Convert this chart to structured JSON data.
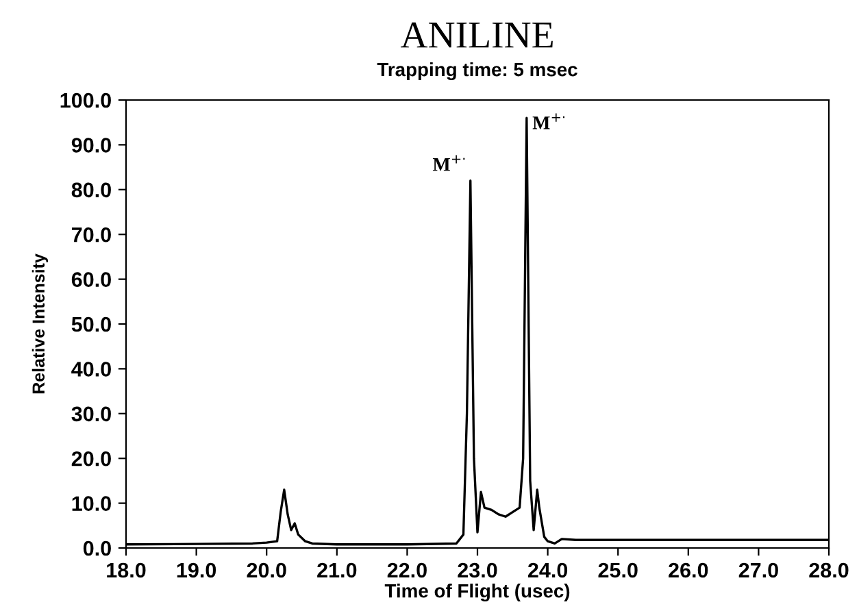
{
  "chart_data": {
    "type": "line",
    "title": "ANILINE",
    "subtitle": "Trapping time: 5 msec",
    "xlabel": "Time of Flight (usec)",
    "ylabel": "Relative Intensity",
    "x": [
      18.0,
      19.0,
      19.8,
      20.0,
      20.15,
      20.2,
      20.25,
      20.3,
      20.35,
      20.4,
      20.45,
      20.55,
      20.65,
      21.0,
      22.0,
      22.7,
      22.8,
      22.85,
      22.9,
      22.95,
      23.0,
      23.05,
      23.1,
      23.2,
      23.3,
      23.4,
      23.5,
      23.6,
      23.65,
      23.7,
      23.75,
      23.8,
      23.85,
      23.88,
      23.95,
      24.0,
      24.1,
      24.2,
      24.4,
      25.0,
      26.0,
      27.0,
      28.0
    ],
    "series": [
      {
        "color": "#000000",
        "values": [
          0.8,
          0.9,
          1.0,
          1.2,
          1.5,
          8.0,
          13.0,
          7.5,
          4.0,
          5.5,
          3.0,
          1.5,
          1.0,
          0.8,
          0.8,
          1.0,
          3.0,
          30.0,
          82.0,
          20.0,
          3.5,
          12.5,
          9.0,
          8.5,
          7.5,
          7.0,
          8.0,
          9.0,
          20.0,
          96.0,
          15.0,
          4.0,
          13.0,
          9.0,
          2.5,
          1.5,
          1.0,
          2.0,
          1.8,
          1.8,
          1.8,
          1.8,
          1.8
        ]
      }
    ],
    "xlim": [
      18.0,
      28.0
    ],
    "ylim": [
      0.0,
      100.0
    ],
    "xticks": [
      {
        "value": 18,
        "label": "18.0"
      },
      {
        "value": 19,
        "label": "19.0"
      },
      {
        "value": 20,
        "label": "20.0"
      },
      {
        "value": 21,
        "label": "21.0"
      },
      {
        "value": 22,
        "label": "22.0"
      },
      {
        "value": 23,
        "label": "23.0"
      },
      {
        "value": 24,
        "label": "24.0"
      },
      {
        "value": 25,
        "label": "25.0"
      },
      {
        "value": 26,
        "label": "26.0"
      },
      {
        "value": 27,
        "label": "27.0"
      },
      {
        "value": 28,
        "label": "28.0"
      }
    ],
    "yticks": [
      {
        "value": 0,
        "label": "0.0"
      },
      {
        "value": 10,
        "label": "10.0"
      },
      {
        "value": 20,
        "label": "20.0"
      },
      {
        "value": 30,
        "label": "30.0"
      },
      {
        "value": 40,
        "label": "40.0"
      },
      {
        "value": 50,
        "label": "50.0"
      },
      {
        "value": 60,
        "label": "60.0"
      },
      {
        "value": 70,
        "label": "70.0"
      },
      {
        "value": 80,
        "label": "80.0"
      },
      {
        "value": 90,
        "label": "90.0"
      },
      {
        "value": 100,
        "label": "100.0"
      }
    ],
    "annotations": [
      {
        "text": "M$^{+·}$",
        "x": 22.9,
        "y": 82.0
      },
      {
        "text": "M$^{+·}$",
        "x": 23.7,
        "y": 96.0
      }
    ],
    "grid": false,
    "legend": false
  }
}
